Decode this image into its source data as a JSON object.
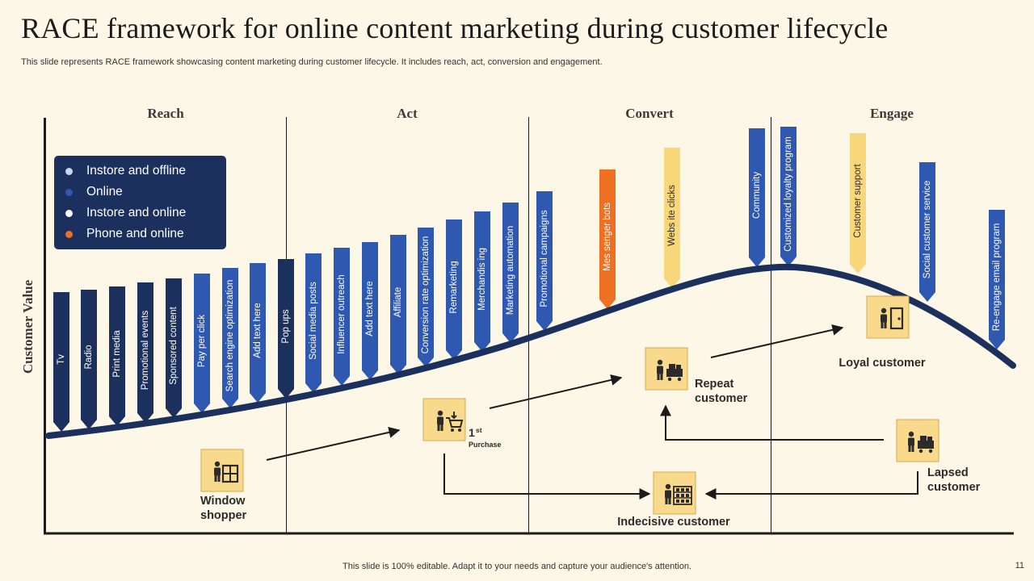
{
  "title": "RACE framework for online content marketing during customer lifecycle",
  "subtitle": "This slide represents RACE framework showcasing content marketing during customer lifecycle. It includes reach, act, conversion and engagement.",
  "footer": "This slide is 100% editable. Adapt it to your needs and capture your audience's attention.",
  "page_number": "11",
  "y_axis_label": "Customer Value",
  "stages": [
    "Reach",
    "Act",
    "Convert",
    "Engage"
  ],
  "colors": {
    "background": "#fcf7e6",
    "instore_offline": "#1c305e",
    "online": "#2f58b0",
    "instore_online": "#f7d77a",
    "phone_online": "#ee7023",
    "curve": "#1c305e",
    "icon_box": "#f9d98c"
  },
  "legend": [
    {
      "label": "Instore and offline",
      "channel": "instore_offline",
      "dot": "#c9d6ee"
    },
    {
      "label": "Online",
      "channel": "online",
      "dot": "#2f58b0"
    },
    {
      "label": "Instore and online",
      "channel": "instore_online",
      "dot": "#ffffff"
    },
    {
      "label": "Phone and online",
      "channel": "phone_online",
      "dot": "#ee7023"
    }
  ],
  "touchpoints": [
    {
      "label": "Tv",
      "channel": "instore_offline"
    },
    {
      "label": "Radio",
      "channel": "instore_offline"
    },
    {
      "label": "Print media",
      "channel": "instore_offline"
    },
    {
      "label": "Promotional events",
      "channel": "instore_offline"
    },
    {
      "label": "Sponsored content",
      "channel": "instore_offline"
    },
    {
      "label": "Pay per click",
      "channel": "online"
    },
    {
      "label": "Search engine optimization",
      "channel": "online"
    },
    {
      "label": "Add text here",
      "channel": "online"
    },
    {
      "label": "Pop ups",
      "channel": "instore_offline"
    },
    {
      "label": "Social media posts",
      "channel": "online"
    },
    {
      "label": "Influencer outreach",
      "channel": "online"
    },
    {
      "label": "Add text here",
      "channel": "online"
    },
    {
      "label": "Affiliate",
      "channel": "online"
    },
    {
      "label": "Conversion rate optimization",
      "channel": "online"
    },
    {
      "label": "Remarketing",
      "channel": "online"
    },
    {
      "label": "Merchandis ing",
      "channel": "online"
    },
    {
      "label": "Marketing automation",
      "channel": "online"
    },
    {
      "label": "Promotional campaigns",
      "channel": "online"
    },
    {
      "label": "Mes senger bots",
      "channel": "phone_online"
    },
    {
      "label": "Webs ite clicks",
      "channel": "instore_online"
    },
    {
      "label": "Community",
      "channel": "online"
    },
    {
      "label": "Customized loyalty program",
      "channel": "online"
    },
    {
      "label": "Customer support",
      "channel": "instore_online"
    },
    {
      "label": "Social customer service",
      "channel": "online"
    },
    {
      "label": "Re-engage email program",
      "channel": "online"
    }
  ],
  "customer_types": [
    {
      "id": "window",
      "label": "Window shopper",
      "icon": "window-shopper-icon"
    },
    {
      "id": "purchase",
      "label": "1",
      "sup": "st",
      "sub": "Purchase",
      "icon": "cart-purchase-icon"
    },
    {
      "id": "repeat",
      "label": "Repeat customer",
      "icon": "repeat-customer-icon"
    },
    {
      "id": "loyal",
      "label": "Loyal customer",
      "icon": "loyal-customer-icon"
    },
    {
      "id": "lapsed",
      "label": "Lapsed customer",
      "icon": "lapsed-customer-icon"
    },
    {
      "id": "indecisive",
      "label": "Indecisive customer",
      "icon": "indecisive-customer-icon"
    }
  ]
}
